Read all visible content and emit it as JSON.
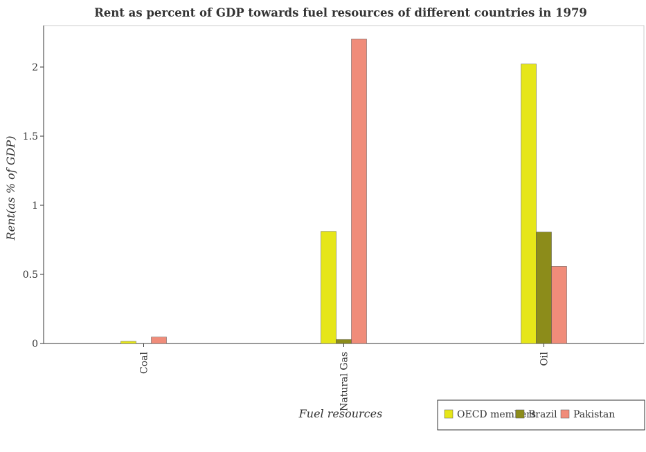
{
  "chart_data": {
    "type": "bar",
    "title": "Rent as percent of GDP towards fuel resources of different countries in 1979",
    "xlabel": "Fuel resources",
    "ylabel": "Rent(as % of GDP)",
    "categories": [
      "Coal",
      "Natural Gas",
      "Oil"
    ],
    "series": [
      {
        "name": "OECD members",
        "color": "#e6e619",
        "values": [
          0.016,
          0.811,
          2.022
        ]
      },
      {
        "name": "Brazil",
        "color": "#8c8c1a",
        "values": [
          0.002,
          0.029,
          0.806
        ]
      },
      {
        "name": "Pakistan",
        "color": "#f08c7a",
        "values": [
          0.047,
          2.203,
          0.558
        ]
      }
    ],
    "ylim": [
      0,
      2.3
    ],
    "yticks": [
      0,
      0.5,
      1,
      1.5,
      2
    ],
    "ytick_labels": [
      "0",
      "0.5",
      "1",
      "1.5",
      "2"
    ],
    "grid": false,
    "legend_position": "bottom-right"
  }
}
